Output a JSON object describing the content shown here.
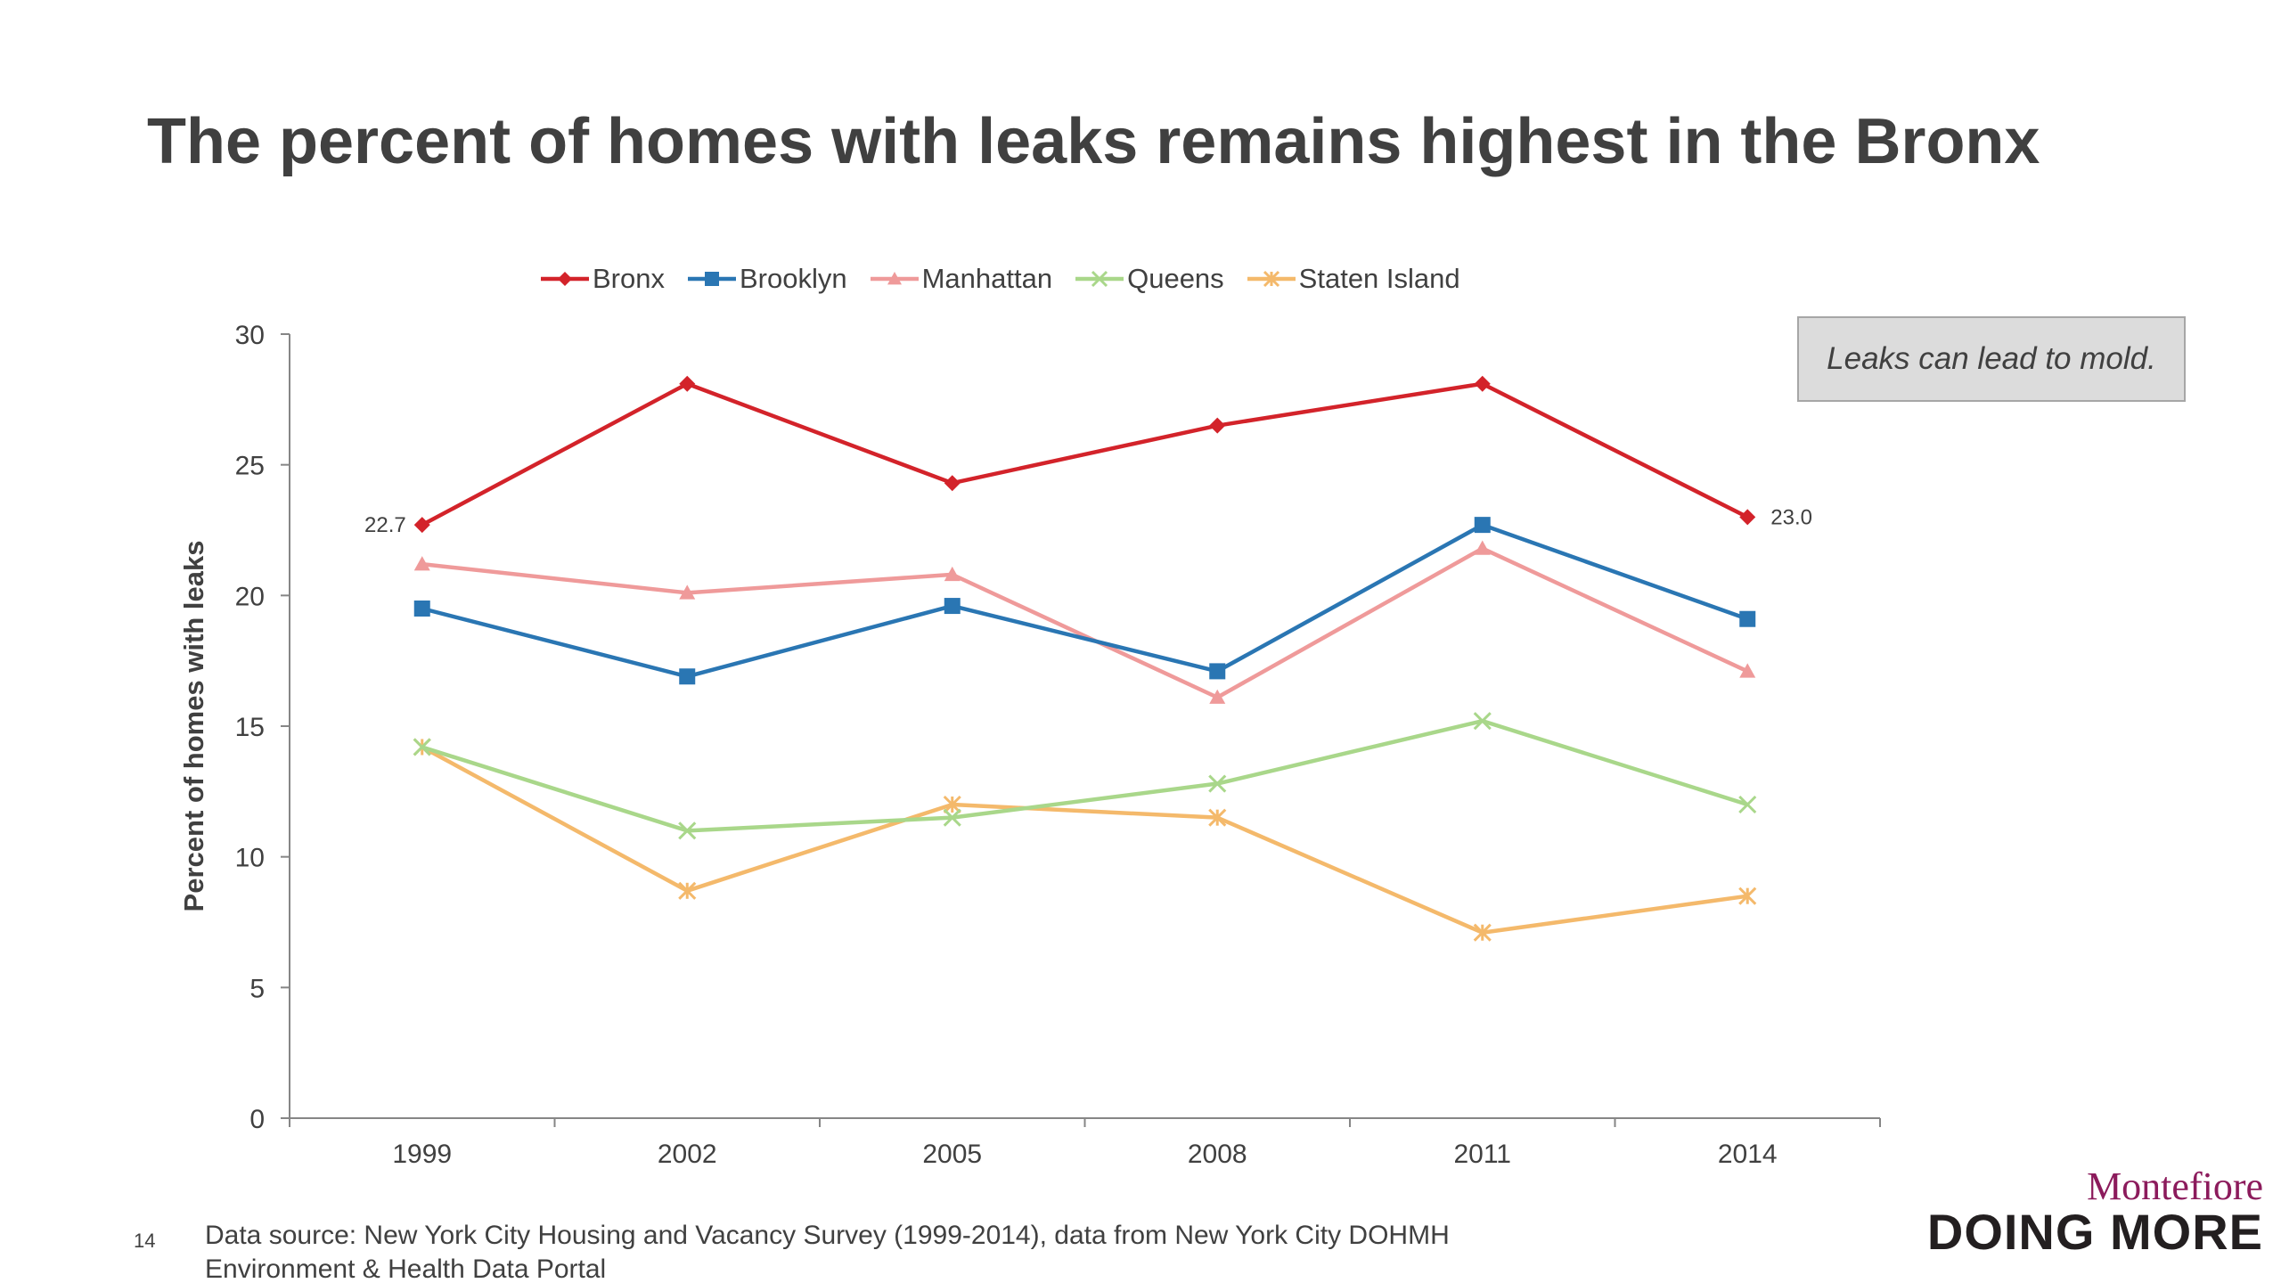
{
  "slide": {
    "title": "The percent of homes with leaks remains highest in the Bronx",
    "callout": "Leaks can lead to mold.",
    "page_number": "14",
    "source_line1": "Data source: New York City Housing and Vacancy Survey (1999-2014), data from New York City DOHMH",
    "source_line2": "Environment & Health Data Portal",
    "logo_top": "Montefiore",
    "logo_bottom": "DOING MORE"
  },
  "chart_data": {
    "type": "line",
    "title": "",
    "xlabel": "",
    "ylabel": "Percent of homes with leaks",
    "categories": [
      "1999",
      "2002",
      "2005",
      "2008",
      "2011",
      "2014"
    ],
    "ylim": [
      0,
      30
    ],
    "yticks": [
      0,
      5,
      10,
      15,
      20,
      25,
      30
    ],
    "grid": false,
    "legend_position": "top",
    "series": [
      {
        "name": "Bronx",
        "color": "#d3232a",
        "marker": "diamond",
        "values": [
          22.7,
          28.1,
          24.3,
          26.5,
          28.1,
          23.0
        ]
      },
      {
        "name": "Brooklyn",
        "color": "#2a76b3",
        "marker": "square",
        "values": [
          19.5,
          16.9,
          19.6,
          17.1,
          22.7,
          19.1
        ]
      },
      {
        "name": "Manhattan",
        "color": "#ef9a9a",
        "marker": "triangle",
        "values": [
          21.2,
          20.1,
          20.8,
          16.1,
          21.8,
          17.1
        ]
      },
      {
        "name": "Queens",
        "color": "#a9d78a",
        "marker": "x",
        "values": [
          14.2,
          11.0,
          11.5,
          12.8,
          15.2,
          12.0
        ]
      },
      {
        "name": "Staten Island",
        "color": "#f4b96b",
        "marker": "star",
        "values": [
          14.2,
          8.7,
          12.0,
          11.5,
          7.1,
          8.5
        ]
      }
    ],
    "annotations": [
      {
        "series": "Bronx",
        "category": "1999",
        "text": "22.7",
        "side": "left"
      },
      {
        "series": "Bronx",
        "category": "2014",
        "text": "23.0",
        "side": "right"
      }
    ]
  }
}
